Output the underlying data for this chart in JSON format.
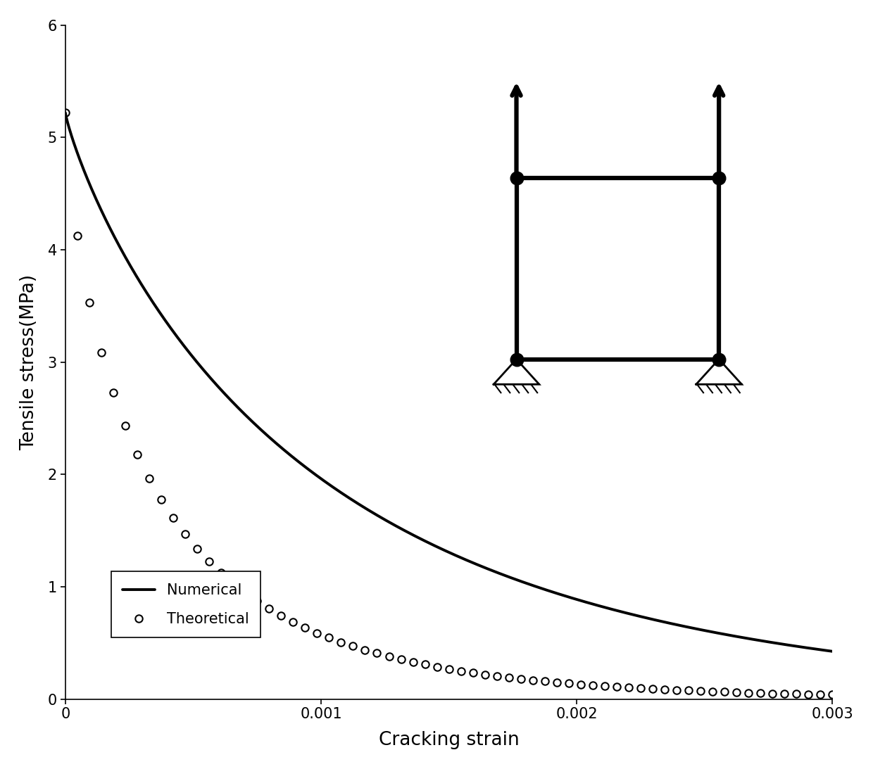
{
  "xlabel": "Cracking strain",
  "ylabel": "Tensile stress(MPa)",
  "xlim": [
    0,
    0.003
  ],
  "ylim": [
    0,
    6
  ],
  "xticks": [
    0,
    0.001,
    0.002,
    0.003
  ],
  "yticks": [
    0,
    1,
    2,
    3,
    4,
    5,
    6
  ],
  "numerical_color": "#000000",
  "theoretical_color": "#000000",
  "background_color": "#ffffff",
  "sigma0": 5.22,
  "alpha_num": 0.597,
  "k_num": 277.7,
  "alpha_th": 0.55,
  "k_th": 420.0,
  "num_theoretical_points": 65
}
